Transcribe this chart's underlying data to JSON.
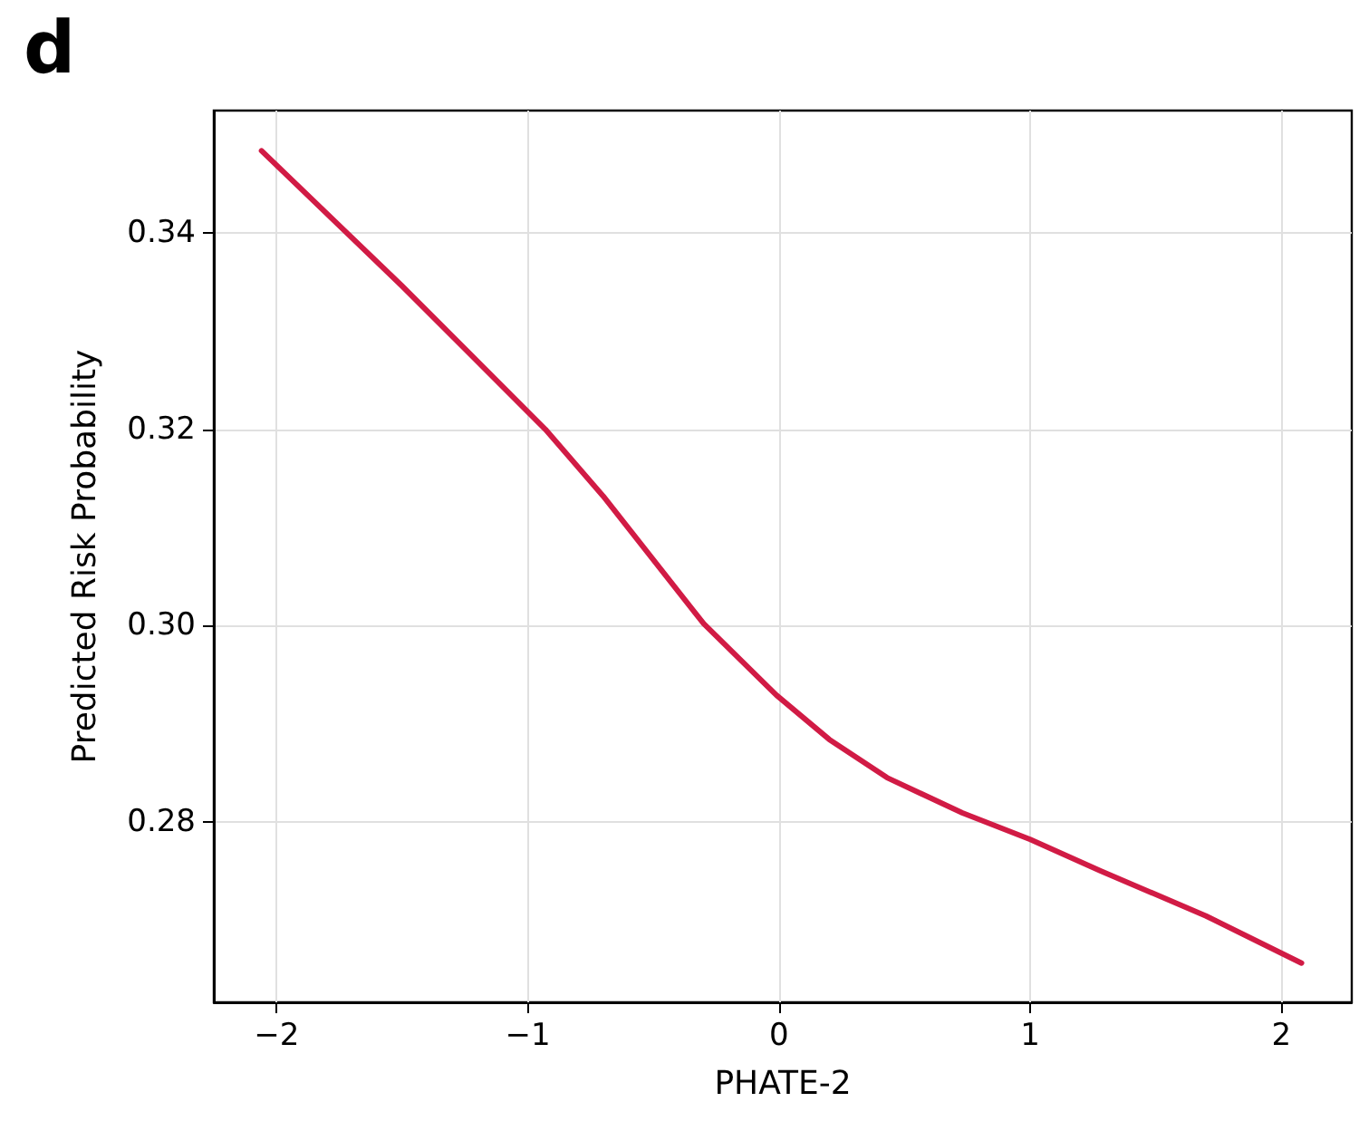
{
  "chart_data": {
    "type": "line",
    "title": "d",
    "xlabel": "PHATE-2",
    "ylabel": "Predicted Risk Probability",
    "x": [
      -2.06,
      -1.5,
      -0.93,
      -0.7,
      -0.3,
      -0.01,
      0.2,
      0.43,
      0.73,
      1.0,
      1.28,
      1.7,
      2.08
    ],
    "series": [
      {
        "color": "#d11b45",
        "values": [
          0.3484,
          0.3346,
          0.32,
          0.3132,
          0.3002,
          0.2929,
          0.2884,
          0.2845,
          0.2809,
          0.2782,
          0.275,
          0.2704,
          0.2656
        ]
      }
    ],
    "xlim": [
      -2.25,
      2.28
    ],
    "ylim": [
      0.2616,
      0.3525
    ],
    "xticks": [
      {
        "value": -2,
        "label": "−2"
      },
      {
        "value": -1,
        "label": "−1"
      },
      0,
      1,
      2
    ],
    "yticks": [
      {
        "value": 0.28,
        "label": "0.28"
      },
      {
        "value": 0.3,
        "label": "0.30"
      },
      {
        "value": 0.32,
        "label": "0.32"
      },
      {
        "value": 0.34,
        "label": "0.34"
      }
    ],
    "grid": true,
    "marker": "none",
    "line_style": "solid"
  }
}
